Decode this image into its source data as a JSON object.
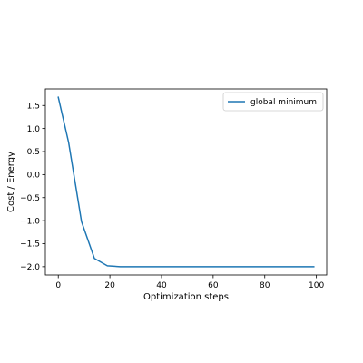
{
  "chart_data": {
    "type": "line",
    "xlabel": "Optimization steps",
    "ylabel": "Cost / Energy",
    "xlim": [
      -5,
      104
    ],
    "ylim": [
      -2.18,
      1.86
    ],
    "xticks": [
      0,
      20,
      40,
      60,
      80,
      100
    ],
    "xtick_labels": [
      "0",
      "20",
      "40",
      "60",
      "80",
      "100"
    ],
    "yticks": [
      -2.0,
      -1.5,
      -1.0,
      -0.5,
      0.0,
      0.5,
      1.0,
      1.5
    ],
    "ytick_labels": [
      "−2.0",
      "−1.5",
      "−1.0",
      "−0.5",
      "0.0",
      "0.5",
      "1.0",
      "1.5"
    ],
    "grid": false,
    "legend_position": "top-right",
    "series": [
      {
        "name": "global minimum",
        "color": "#1f77b4",
        "x": [
          0,
          4,
          9,
          14,
          19,
          24,
          29,
          34,
          39,
          44,
          49,
          54,
          59,
          64,
          69,
          74,
          79,
          84,
          89,
          94,
          99
        ],
        "y": [
          1.68,
          0.7,
          -1.02,
          -1.82,
          -1.98,
          -2.0,
          -2.0,
          -2.0,
          -2.0,
          -2.0,
          -2.0,
          -2.0,
          -2.0,
          -2.0,
          -2.0,
          -2.0,
          -2.0,
          -2.0,
          -2.0,
          -2.0,
          -2.0
        ]
      }
    ]
  }
}
